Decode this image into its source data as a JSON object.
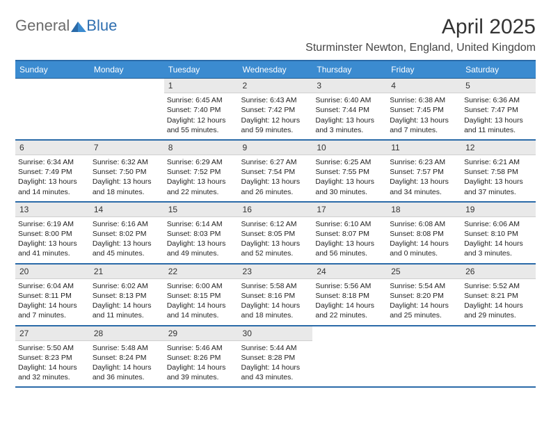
{
  "logo": {
    "part1": "General",
    "part2": "Blue"
  },
  "title": "April 2025",
  "subtitle": "Sturminster Newton, England, United Kingdom",
  "day_headers": [
    "Sunday",
    "Monday",
    "Tuesday",
    "Wednesday",
    "Thursday",
    "Friday",
    "Saturday"
  ],
  "colors": {
    "header_bg": "#3b8bd0",
    "header_text": "#ffffff",
    "border": "#2a6aa8",
    "daynum_bg": "#e9e9e9",
    "logo_blue": "#2f6fb0",
    "logo_gray": "#6b6b6b",
    "title_color": "#333333"
  },
  "weeks": [
    [
      {
        "day": "",
        "sunrise": "",
        "sunset": "",
        "daylight": ""
      },
      {
        "day": "",
        "sunrise": "",
        "sunset": "",
        "daylight": ""
      },
      {
        "day": "1",
        "sunrise": "Sunrise: 6:45 AM",
        "sunset": "Sunset: 7:40 PM",
        "daylight": "Daylight: 12 hours and 55 minutes."
      },
      {
        "day": "2",
        "sunrise": "Sunrise: 6:43 AM",
        "sunset": "Sunset: 7:42 PM",
        "daylight": "Daylight: 12 hours and 59 minutes."
      },
      {
        "day": "3",
        "sunrise": "Sunrise: 6:40 AM",
        "sunset": "Sunset: 7:44 PM",
        "daylight": "Daylight: 13 hours and 3 minutes."
      },
      {
        "day": "4",
        "sunrise": "Sunrise: 6:38 AM",
        "sunset": "Sunset: 7:45 PM",
        "daylight": "Daylight: 13 hours and 7 minutes."
      },
      {
        "day": "5",
        "sunrise": "Sunrise: 6:36 AM",
        "sunset": "Sunset: 7:47 PM",
        "daylight": "Daylight: 13 hours and 11 minutes."
      }
    ],
    [
      {
        "day": "6",
        "sunrise": "Sunrise: 6:34 AM",
        "sunset": "Sunset: 7:49 PM",
        "daylight": "Daylight: 13 hours and 14 minutes."
      },
      {
        "day": "7",
        "sunrise": "Sunrise: 6:32 AM",
        "sunset": "Sunset: 7:50 PM",
        "daylight": "Daylight: 13 hours and 18 minutes."
      },
      {
        "day": "8",
        "sunrise": "Sunrise: 6:29 AM",
        "sunset": "Sunset: 7:52 PM",
        "daylight": "Daylight: 13 hours and 22 minutes."
      },
      {
        "day": "9",
        "sunrise": "Sunrise: 6:27 AM",
        "sunset": "Sunset: 7:54 PM",
        "daylight": "Daylight: 13 hours and 26 minutes."
      },
      {
        "day": "10",
        "sunrise": "Sunrise: 6:25 AM",
        "sunset": "Sunset: 7:55 PM",
        "daylight": "Daylight: 13 hours and 30 minutes."
      },
      {
        "day": "11",
        "sunrise": "Sunrise: 6:23 AM",
        "sunset": "Sunset: 7:57 PM",
        "daylight": "Daylight: 13 hours and 34 minutes."
      },
      {
        "day": "12",
        "sunrise": "Sunrise: 6:21 AM",
        "sunset": "Sunset: 7:58 PM",
        "daylight": "Daylight: 13 hours and 37 minutes."
      }
    ],
    [
      {
        "day": "13",
        "sunrise": "Sunrise: 6:19 AM",
        "sunset": "Sunset: 8:00 PM",
        "daylight": "Daylight: 13 hours and 41 minutes."
      },
      {
        "day": "14",
        "sunrise": "Sunrise: 6:16 AM",
        "sunset": "Sunset: 8:02 PM",
        "daylight": "Daylight: 13 hours and 45 minutes."
      },
      {
        "day": "15",
        "sunrise": "Sunrise: 6:14 AM",
        "sunset": "Sunset: 8:03 PM",
        "daylight": "Daylight: 13 hours and 49 minutes."
      },
      {
        "day": "16",
        "sunrise": "Sunrise: 6:12 AM",
        "sunset": "Sunset: 8:05 PM",
        "daylight": "Daylight: 13 hours and 52 minutes."
      },
      {
        "day": "17",
        "sunrise": "Sunrise: 6:10 AM",
        "sunset": "Sunset: 8:07 PM",
        "daylight": "Daylight: 13 hours and 56 minutes."
      },
      {
        "day": "18",
        "sunrise": "Sunrise: 6:08 AM",
        "sunset": "Sunset: 8:08 PM",
        "daylight": "Daylight: 14 hours and 0 minutes."
      },
      {
        "day": "19",
        "sunrise": "Sunrise: 6:06 AM",
        "sunset": "Sunset: 8:10 PM",
        "daylight": "Daylight: 14 hours and 3 minutes."
      }
    ],
    [
      {
        "day": "20",
        "sunrise": "Sunrise: 6:04 AM",
        "sunset": "Sunset: 8:11 PM",
        "daylight": "Daylight: 14 hours and 7 minutes."
      },
      {
        "day": "21",
        "sunrise": "Sunrise: 6:02 AM",
        "sunset": "Sunset: 8:13 PM",
        "daylight": "Daylight: 14 hours and 11 minutes."
      },
      {
        "day": "22",
        "sunrise": "Sunrise: 6:00 AM",
        "sunset": "Sunset: 8:15 PM",
        "daylight": "Daylight: 14 hours and 14 minutes."
      },
      {
        "day": "23",
        "sunrise": "Sunrise: 5:58 AM",
        "sunset": "Sunset: 8:16 PM",
        "daylight": "Daylight: 14 hours and 18 minutes."
      },
      {
        "day": "24",
        "sunrise": "Sunrise: 5:56 AM",
        "sunset": "Sunset: 8:18 PM",
        "daylight": "Daylight: 14 hours and 22 minutes."
      },
      {
        "day": "25",
        "sunrise": "Sunrise: 5:54 AM",
        "sunset": "Sunset: 8:20 PM",
        "daylight": "Daylight: 14 hours and 25 minutes."
      },
      {
        "day": "26",
        "sunrise": "Sunrise: 5:52 AM",
        "sunset": "Sunset: 8:21 PM",
        "daylight": "Daylight: 14 hours and 29 minutes."
      }
    ],
    [
      {
        "day": "27",
        "sunrise": "Sunrise: 5:50 AM",
        "sunset": "Sunset: 8:23 PM",
        "daylight": "Daylight: 14 hours and 32 minutes."
      },
      {
        "day": "28",
        "sunrise": "Sunrise: 5:48 AM",
        "sunset": "Sunset: 8:24 PM",
        "daylight": "Daylight: 14 hours and 36 minutes."
      },
      {
        "day": "29",
        "sunrise": "Sunrise: 5:46 AM",
        "sunset": "Sunset: 8:26 PM",
        "daylight": "Daylight: 14 hours and 39 minutes."
      },
      {
        "day": "30",
        "sunrise": "Sunrise: 5:44 AM",
        "sunset": "Sunset: 8:28 PM",
        "daylight": "Daylight: 14 hours and 43 minutes."
      },
      {
        "day": "",
        "sunrise": "",
        "sunset": "",
        "daylight": ""
      },
      {
        "day": "",
        "sunrise": "",
        "sunset": "",
        "daylight": ""
      },
      {
        "day": "",
        "sunrise": "",
        "sunset": "",
        "daylight": ""
      }
    ]
  ]
}
